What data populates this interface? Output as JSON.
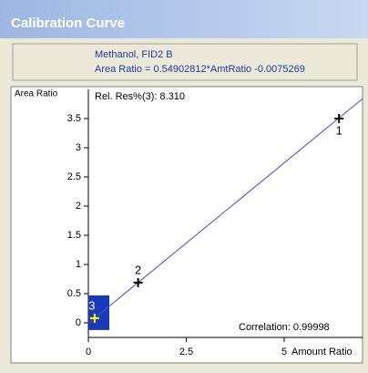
{
  "window": {
    "title": "Calibration Curve"
  },
  "header": {
    "line1": "Methanol, FID2 B",
    "line2": "Area Ratio = 0.54902812*AmtRatio -0.0075269"
  },
  "chart_data": {
    "type": "scatter",
    "y_label": "Area Ratio",
    "x_label": "Amount Ratio",
    "annotations": {
      "top": "Rel. Res%(3): 8.310",
      "bottom": "Correlation: 0.99998"
    },
    "points": {
      "x": [
        6.4,
        1.27,
        0.16
      ],
      "y": [
        3.5,
        0.69,
        0.08
      ],
      "labels": [
        "1",
        "2",
        "3"
      ],
      "color": "#000000",
      "selected_color": "#ffff00"
    },
    "fit": {
      "x": [
        0,
        7
      ],
      "y": [
        -0.0075,
        3.84
      ],
      "color": "#4a4ad8"
    },
    "xlim": [
      0,
      7
    ],
    "ylim": [
      -0.25,
      4
    ],
    "xticks": [
      0,
      2.5,
      5
    ],
    "yticks": [
      0,
      0.5,
      1,
      1.5,
      2,
      2.5,
      3,
      3.5
    ]
  }
}
